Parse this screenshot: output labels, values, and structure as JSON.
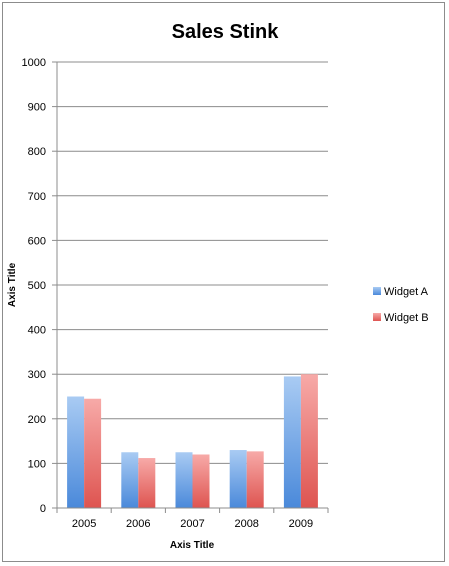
{
  "chart_data": {
    "type": "bar",
    "title": "Sales Stink",
    "xlabel": "Axis Title",
    "ylabel": "Axis Title",
    "categories": [
      "2005",
      "2006",
      "2007",
      "2008",
      "2009"
    ],
    "series": [
      {
        "name": "Widget A",
        "values": [
          250,
          125,
          125,
          130,
          295
        ],
        "color": "#4f8fdc"
      },
      {
        "name": "Widget B",
        "values": [
          245,
          112,
          120,
          127,
          300
        ],
        "color": "#e35c58"
      }
    ],
    "ylim": [
      0,
      1000
    ],
    "yticks": [
      0,
      100,
      200,
      300,
      400,
      500,
      600,
      700,
      800,
      900,
      1000
    ],
    "grid": true,
    "legend": "right"
  }
}
